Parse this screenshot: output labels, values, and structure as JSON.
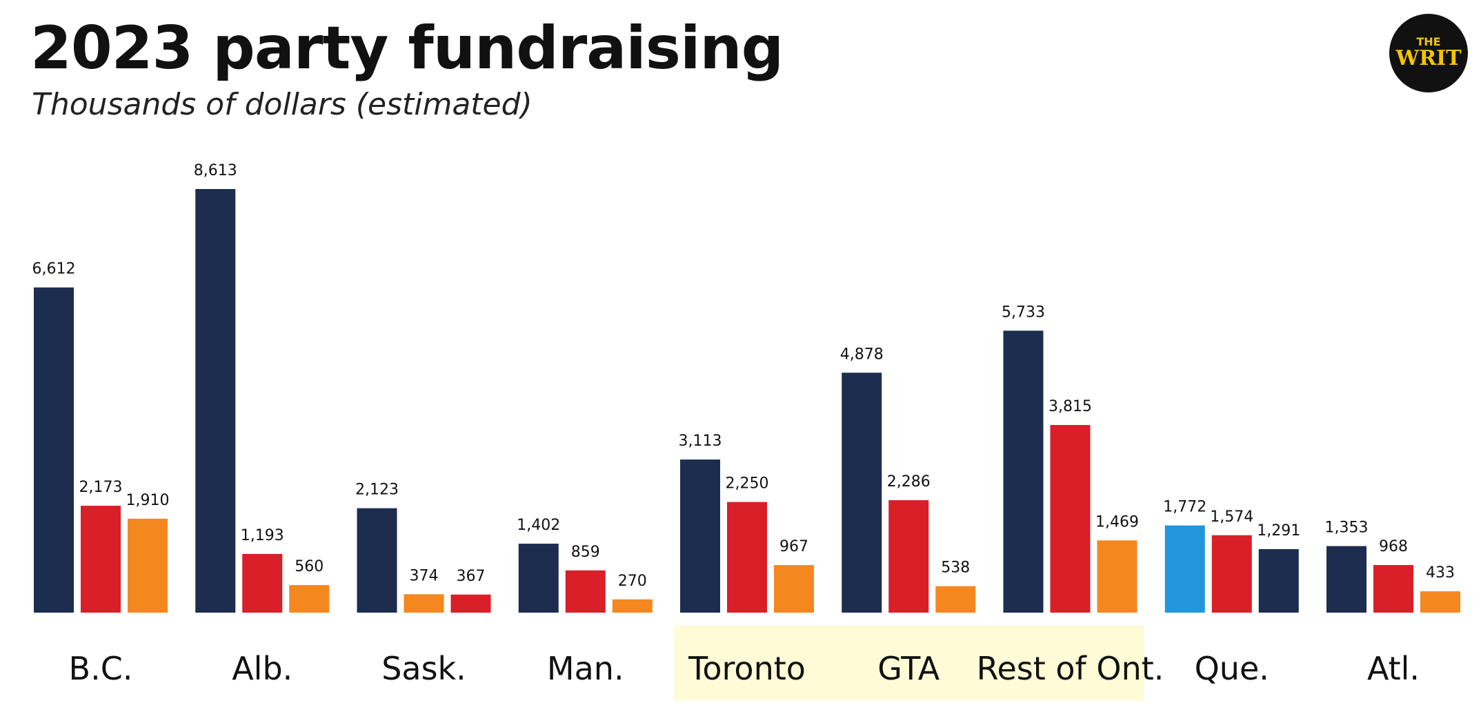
{
  "logo": {
    "line1": "THE",
    "line2": "WRIT",
    "background": "#111111",
    "text_color": "#f5c400"
  },
  "colors": {
    "navy": "#1c2d4f",
    "red": "#d91f28",
    "orange": "#f5871f",
    "blue": "#2196dc",
    "highlight": "#fefbd6"
  },
  "chart_data": {
    "type": "bar",
    "title": "2023 party fundraising",
    "subtitle": "Thousands of dollars (estimated)",
    "xlabel": "",
    "ylabel": "",
    "ylim": [
      0,
      8613
    ],
    "grid": false,
    "legend": "none",
    "highlighted_categories": [
      "Toronto",
      "GTA",
      "Rest of Ont."
    ],
    "categories": [
      {
        "label": "B.C.",
        "bars": [
          {
            "value": 6612,
            "label": "6,612",
            "color": "#1c2d4f"
          },
          {
            "value": 2173,
            "label": "2,173",
            "color": "#d91f28"
          },
          {
            "value": 1910,
            "label": "1,910",
            "color": "#f5871f"
          }
        ]
      },
      {
        "label": "Alb.",
        "bars": [
          {
            "value": 8613,
            "label": "8,613",
            "color": "#1c2d4f"
          },
          {
            "value": 1193,
            "label": "1,193",
            "color": "#d91f28"
          },
          {
            "value": 560,
            "label": "560",
            "color": "#f5871f"
          }
        ]
      },
      {
        "label": "Sask.",
        "bars": [
          {
            "value": 2123,
            "label": "2,123",
            "color": "#1c2d4f"
          },
          {
            "value": 374,
            "label": "374",
            "color": "#f5871f"
          },
          {
            "value": 367,
            "label": "367",
            "color": "#d91f28"
          }
        ]
      },
      {
        "label": "Man.",
        "bars": [
          {
            "value": 1402,
            "label": "1,402",
            "color": "#1c2d4f"
          },
          {
            "value": 859,
            "label": "859",
            "color": "#d91f28"
          },
          {
            "value": 270,
            "label": "270",
            "color": "#f5871f"
          }
        ]
      },
      {
        "label": "Toronto",
        "bars": [
          {
            "value": 3113,
            "label": "3,113",
            "color": "#1c2d4f"
          },
          {
            "value": 2250,
            "label": "2,250",
            "color": "#d91f28"
          },
          {
            "value": 967,
            "label": "967",
            "color": "#f5871f"
          }
        ]
      },
      {
        "label": "GTA",
        "bars": [
          {
            "value": 4878,
            "label": "4,878",
            "color": "#1c2d4f"
          },
          {
            "value": 2286,
            "label": "2,286",
            "color": "#d91f28"
          },
          {
            "value": 538,
            "label": "538",
            "color": "#f5871f"
          }
        ]
      },
      {
        "label": "Rest of Ont.",
        "bars": [
          {
            "value": 5733,
            "label": "5,733",
            "color": "#1c2d4f"
          },
          {
            "value": 3815,
            "label": "3,815",
            "color": "#d91f28"
          },
          {
            "value": 1469,
            "label": "1,469",
            "color": "#f5871f"
          }
        ]
      },
      {
        "label": "Que.",
        "bars": [
          {
            "value": 1772,
            "label": "1,772",
            "color": "#2196dc"
          },
          {
            "value": 1574,
            "label": "1,574",
            "color": "#d91f28"
          },
          {
            "value": 1291,
            "label": "1,291",
            "color": "#1c2d4f"
          }
        ]
      },
      {
        "label": "Atl.",
        "bars": [
          {
            "value": 1353,
            "label": "1,353",
            "color": "#1c2d4f"
          },
          {
            "value": 968,
            "label": "968",
            "color": "#d91f28"
          },
          {
            "value": 433,
            "label": "433",
            "color": "#f5871f"
          }
        ]
      }
    ]
  }
}
